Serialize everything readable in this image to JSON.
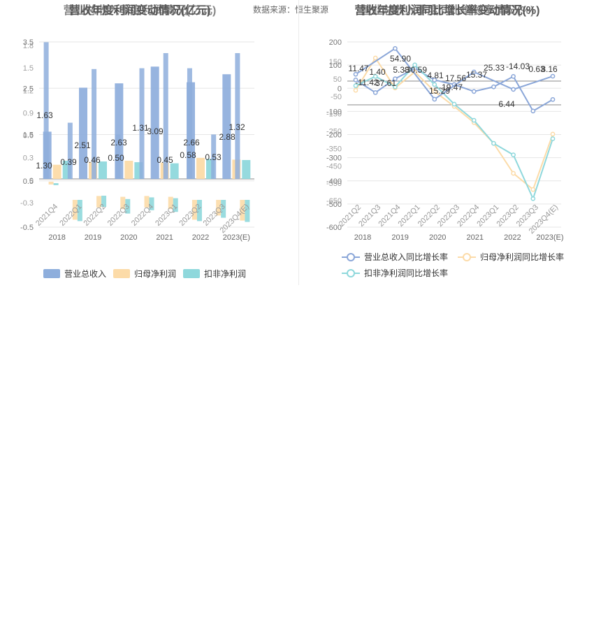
{
  "header": {
    "left_title_a": "营收年度利润变动情况(亿元)",
    "left_title_b": "营业总收入季度利润情况(亿元)",
    "source": "数据来源：恒生聚源",
    "right_title_a": "营收年度利润同比增长率变动情况(%)",
    "right_title_b": "营业总收入季度同比增长率情况(%)"
  },
  "chart_data": [
    {
      "type": "bar",
      "y_ticks_a": [
        "3.5",
        "2.5",
        "1.5",
        "0.5",
        "-0.5"
      ],
      "y_ticks_b": [
        "1.8",
        "1.5",
        "1.2",
        "0.9",
        "0.6",
        "0.3",
        "0",
        "-0.3"
      ],
      "x_years": [
        "2018",
        "2019",
        "2020",
        "2021",
        "2022",
        "2023(E)"
      ],
      "x_quarters": [
        "2021Q4",
        "2022Q1",
        "2022Q2",
        "2022Q3",
        "2022Q4",
        "2023Q1",
        "2023Q2",
        "2023Q3",
        "2023Q4(E)"
      ],
      "legend": [
        "营业总收入",
        "归母净利润",
        "扣非净利润"
      ],
      "annual": {
        "ylim": [
          -0.5,
          3.5
        ],
        "revenue": [
          1.3,
          2.51,
          2.63,
          3.09,
          2.66,
          2.88
        ],
        "net_profit": [
          0.39,
          0.46,
          0.5,
          0.45,
          0.58,
          0.53
        ],
        "deducted_profit": [
          0.5,
          0.48,
          0.46,
          0.43,
          0.55,
          0.52
        ]
      },
      "quarterly": {
        "ylim": [
          -0.3,
          1.8
        ],
        "revenue": [
          1.63,
          0.67,
          1.31,
          0.53,
          1.32,
          1.5,
          1.32,
          0.53,
          1.5
        ],
        "net_profit": [
          0.2,
          -0.07,
          0.03,
          0.02,
          0.03,
          0.02,
          -0.07,
          -0.02,
          -0.08
        ],
        "deducted_profit": [
          0.2,
          -0.07,
          0.05,
          0.01,
          0.03,
          0.02,
          -0.07,
          -0.03,
          -0.08
        ]
      },
      "labels": [
        "1.63",
        "1.30",
        "0.39",
        "2.51",
        "0.46",
        "2.63",
        "0.50",
        "1.31",
        "3.09",
        "0.45",
        "2.66",
        "0.58",
        "0.53",
        "2.88",
        "1.32"
      ],
      "colors": {
        "revenue": "#8eaedc",
        "net_profit": "#fcdba8",
        "deducted_profit": "#8fd8dc"
      }
    },
    {
      "type": "line",
      "y_ticks_a": [
        "200",
        "100",
        "0",
        "-100",
        "-200",
        "-300",
        "-400",
        "-500",
        "-600"
      ],
      "y_ticks_b": [
        "150",
        "50",
        "-50",
        "-150",
        "-250",
        "-350",
        "-450",
        "-550",
        "-650"
      ],
      "x_years": [
        "2018",
        "2019",
        "2020",
        "2021",
        "2022",
        "2023(E)"
      ],
      "x_quarters": [
        "2021Q2",
        "2021Q3",
        "2021Q4",
        "2022Q1",
        "2022Q2",
        "2022Q3",
        "2022Q4",
        "2023Q1",
        "2023Q2",
        "2023Q3",
        "2023Q4(E)"
      ],
      "legend": [
        "营业总收入同比增长率",
        "归母净利润同比增长率",
        "扣非净利润同比增长率"
      ],
      "ylim": [
        -220,
        210
      ],
      "annual": {
        "revenue_yoy": [
          11.47,
          54.9,
          -30.59,
          15.29,
          -14.03,
          8.16
        ],
        "net_profit_yoy": [
          -11.42,
          37.61,
          4.81,
          -19.47,
          15.37,
          6.44
        ],
        "deducted_profit_yoy": [
          1.4,
          5.38,
          17.56,
          25.33,
          0.63,
          0
        ]
      },
      "quarterly": {
        "revenue_yoy": [
          5,
          -50,
          10,
          55,
          5,
          -15,
          -45,
          -25,
          20,
          -130,
          -80
        ],
        "net_profit_yoy": [
          -40,
          100,
          -30,
          40,
          -45,
          -110,
          -180,
          -270,
          -400,
          -470,
          -230
        ],
        "deducted_profit_yoy": [
          -20,
          20,
          -25,
          70,
          -15,
          -100,
          -170,
          -270,
          -320,
          -510,
          -250
        ]
      },
      "labels": [
        "11.47",
        "-11.42",
        "1.40",
        "37.61",
        "54.90",
        "5.38",
        "-30.59",
        "4.81",
        "15.29",
        "-19.47",
        "17.56",
        "15.37",
        "25.33",
        "-14.03",
        "6.44",
        "0.63",
        "8.16"
      ],
      "colors": {
        "revenue_yoy": "#8aa6d8",
        "net_profit_yoy": "#fcdba8",
        "deducted_profit_yoy": "#8fd8dc"
      }
    }
  ]
}
